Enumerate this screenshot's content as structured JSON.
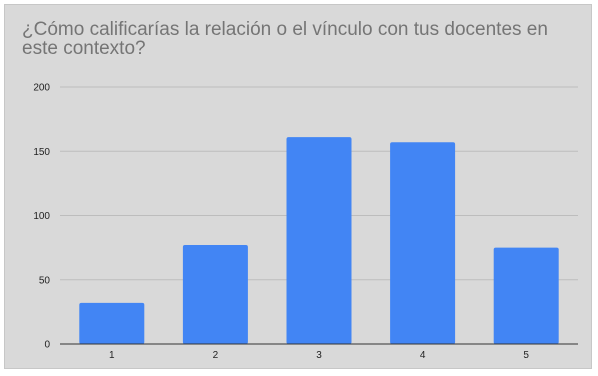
{
  "chart_data": {
    "type": "bar",
    "title": "¿Cómo calificarías la relación o el vínculo con tus docentes en este contexto?",
    "xlabel": "",
    "ylabel": "",
    "categories": [
      "1",
      "2",
      "3",
      "4",
      "5"
    ],
    "values": [
      32,
      77,
      161,
      157,
      75
    ],
    "ylim": [
      0,
      200
    ],
    "yticks": [
      0,
      50,
      100,
      150,
      200
    ],
    "ytick_labels": [
      "0",
      "50",
      "100",
      "150",
      "200"
    ],
    "grid": true,
    "legend": "none",
    "colors": {
      "bar": "#4285f4",
      "background": "#d9d9d9",
      "gridline": "#bdbdbd",
      "axis": "#333333",
      "title": "#757575"
    }
  }
}
